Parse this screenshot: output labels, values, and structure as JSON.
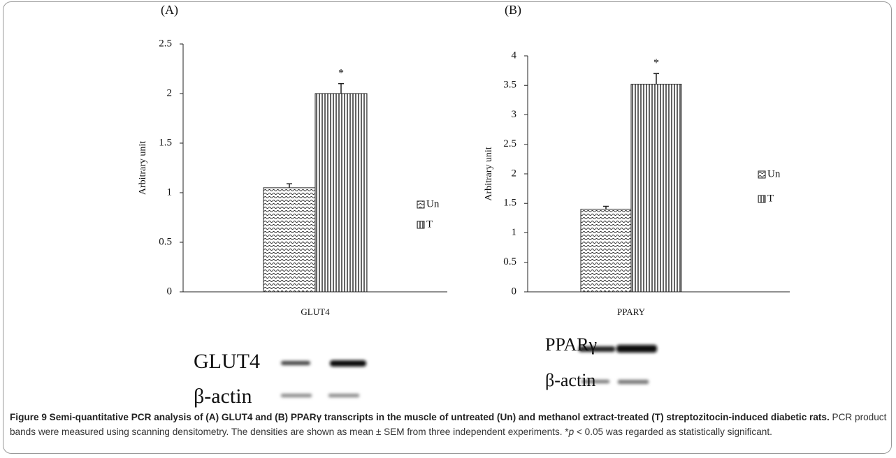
{
  "chart_data": [
    {
      "type": "bar",
      "panel_label": "(A)",
      "y_label": "Arbitrary unit",
      "categories": [
        "GLUT4"
      ],
      "series": [
        {
          "name": "Un",
          "values": [
            1.05
          ],
          "errors": [
            0.04
          ],
          "annotations": [
            null
          ]
        },
        {
          "name": "T",
          "values": [
            2.0
          ],
          "errors": [
            0.1
          ],
          "annotations": [
            "*"
          ]
        }
      ],
      "ylim": [
        0,
        2.5
      ],
      "yticks": [
        0,
        0.5,
        1,
        1.5,
        2,
        2.5
      ]
    },
    {
      "type": "bar",
      "panel_label": "(B)",
      "y_label": "Arbitrary unit",
      "categories": [
        "PPARY"
      ],
      "series": [
        {
          "name": "Un",
          "values": [
            1.4
          ],
          "errors": [
            0.05
          ],
          "annotations": [
            null
          ]
        },
        {
          "name": "T",
          "values": [
            3.52
          ],
          "errors": [
            0.18
          ],
          "annotations": [
            "*"
          ]
        }
      ],
      "ylim": [
        0,
        4
      ],
      "yticks": [
        0,
        0.5,
        1,
        1.5,
        2,
        2.5,
        3,
        3.5,
        4
      ]
    }
  ],
  "gels": [
    {
      "labels": [
        "GLUT4",
        "β-actin"
      ]
    },
    {
      "labels": [
        "PPARγ",
        "β-actin"
      ]
    }
  ],
  "caption": {
    "bold": "Figure 9 Semi-quantitative PCR analysis of (A) GLUT4 and (B) PPARγ transcripts in the muscle of untreated (Un) and methanol extract-treated (T) streptozitocin-induced diabetic rats.",
    "text_before": " PCR product bands were measured using scanning densitometry. The densities are shown as mean ± SEM from three independent experiments. *",
    "italic": "p",
    "text_after": " < 0.05 was regarded as statistically significant."
  }
}
